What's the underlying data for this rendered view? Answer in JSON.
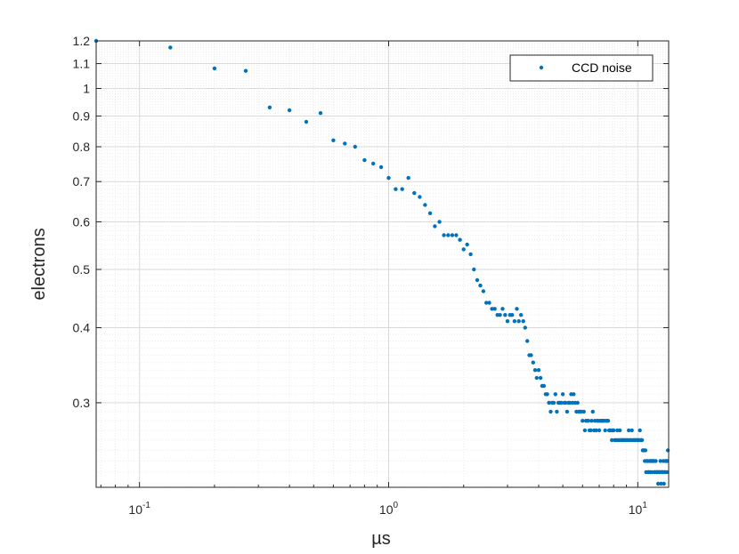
{
  "colors": {
    "series": "#0072BD",
    "axis": "#262626",
    "grid_major": "#d9d9d9",
    "grid_minor": "#ececec",
    "background": "#ffffff"
  },
  "chart_data": {
    "type": "scatter",
    "title": "",
    "xlabel": "µs",
    "ylabel": "electrons",
    "xscale": "log",
    "yscale": "log",
    "xlim": [
      0.067,
      13.3
    ],
    "ylim": [
      0.217,
      1.2
    ],
    "grid": true,
    "legend": {
      "position": "top-right",
      "entries": [
        "CCD noise"
      ]
    },
    "x_ticks": [
      {
        "value": 0.1,
        "base": "10",
        "exp": "-1"
      },
      {
        "value": 1,
        "base": "10",
        "exp": "0"
      },
      {
        "value": 10,
        "base": "10",
        "exp": "1"
      }
    ],
    "y_ticks": [
      {
        "value": 1.2,
        "label": "1.2"
      },
      {
        "value": 1.1,
        "label": "1.1"
      },
      {
        "value": 1.0,
        "label": "1"
      },
      {
        "value": 0.9,
        "label": "0.9"
      },
      {
        "value": 0.8,
        "label": "0.8"
      },
      {
        "value": 0.7,
        "label": "0.7"
      },
      {
        "value": 0.6,
        "label": "0.6"
      },
      {
        "value": 0.5,
        "label": "0.5"
      },
      {
        "value": 0.4,
        "label": "0.4"
      },
      {
        "value": 0.3,
        "label": "0.3"
      }
    ],
    "series": [
      {
        "name": "CCD noise",
        "points": [
          [
            0.067,
            1.2
          ],
          [
            0.133,
            1.17
          ],
          [
            0.2,
            1.08
          ],
          [
            0.267,
            1.07
          ],
          [
            0.333,
            0.93
          ],
          [
            0.4,
            0.92
          ],
          [
            0.467,
            0.88
          ],
          [
            0.533,
            0.91
          ],
          [
            0.6,
            0.82
          ],
          [
            0.667,
            0.81
          ],
          [
            0.733,
            0.8
          ],
          [
            0.8,
            0.76
          ],
          [
            0.867,
            0.75
          ],
          [
            0.933,
            0.74
          ],
          [
            1.0,
            0.71
          ],
          [
            1.067,
            0.68
          ],
          [
            1.133,
            0.68
          ],
          [
            1.2,
            0.71
          ],
          [
            1.267,
            0.67
          ],
          [
            1.333,
            0.66
          ],
          [
            1.4,
            0.64
          ],
          [
            1.467,
            0.62
          ],
          [
            1.533,
            0.59
          ],
          [
            1.6,
            0.6
          ],
          [
            1.667,
            0.57
          ],
          [
            1.733,
            0.57
          ],
          [
            1.8,
            0.57
          ],
          [
            1.867,
            0.57
          ],
          [
            1.933,
            0.56
          ],
          [
            2.0,
            0.54
          ],
          [
            2.067,
            0.55
          ],
          [
            2.133,
            0.53
          ],
          [
            2.2,
            0.5
          ],
          [
            2.267,
            0.48
          ],
          [
            2.333,
            0.47
          ],
          [
            2.4,
            0.46
          ],
          [
            2.467,
            0.44
          ],
          [
            2.533,
            0.44
          ],
          [
            2.6,
            0.43
          ],
          [
            2.667,
            0.43
          ],
          [
            2.733,
            0.42
          ],
          [
            2.8,
            0.42
          ],
          [
            2.867,
            0.43
          ],
          [
            2.933,
            0.42
          ],
          [
            3.0,
            0.41
          ],
          [
            3.07,
            0.42
          ],
          [
            3.13,
            0.42
          ],
          [
            3.2,
            0.41
          ],
          [
            3.27,
            0.43
          ],
          [
            3.33,
            0.41
          ],
          [
            3.4,
            0.42
          ],
          [
            3.47,
            0.41
          ],
          [
            3.53,
            0.4
          ],
          [
            3.6,
            0.38
          ],
          [
            3.67,
            0.36
          ],
          [
            3.73,
            0.36
          ],
          [
            3.8,
            0.35
          ],
          [
            3.87,
            0.34
          ],
          [
            3.93,
            0.33
          ],
          [
            4.0,
            0.34
          ],
          [
            4.07,
            0.33
          ],
          [
            4.13,
            0.32
          ],
          [
            4.2,
            0.32
          ],
          [
            4.27,
            0.31
          ],
          [
            4.33,
            0.31
          ],
          [
            4.4,
            0.3
          ],
          [
            4.47,
            0.29
          ],
          [
            4.53,
            0.3
          ],
          [
            4.6,
            0.3
          ],
          [
            4.67,
            0.31
          ],
          [
            4.73,
            0.29
          ],
          [
            4.8,
            0.3
          ],
          [
            4.87,
            0.3
          ],
          [
            4.93,
            0.3
          ],
          [
            5.0,
            0.31
          ],
          [
            5.07,
            0.3
          ],
          [
            5.13,
            0.3
          ],
          [
            5.2,
            0.29
          ],
          [
            5.27,
            0.3
          ],
          [
            5.33,
            0.3
          ],
          [
            5.4,
            0.31
          ],
          [
            5.47,
            0.3
          ],
          [
            5.53,
            0.31
          ],
          [
            5.6,
            0.3
          ],
          [
            5.67,
            0.29
          ],
          [
            5.73,
            0.3
          ],
          [
            5.8,
            0.29
          ],
          [
            5.87,
            0.29
          ],
          [
            5.93,
            0.29
          ],
          [
            6.0,
            0.28
          ],
          [
            6.07,
            0.29
          ],
          [
            6.13,
            0.27
          ],
          [
            6.2,
            0.28
          ],
          [
            6.27,
            0.28
          ],
          [
            6.33,
            0.28
          ],
          [
            6.4,
            0.27
          ],
          [
            6.47,
            0.27
          ],
          [
            6.53,
            0.28
          ],
          [
            6.6,
            0.29
          ],
          [
            6.67,
            0.27
          ],
          [
            6.73,
            0.28
          ],
          [
            6.8,
            0.27
          ],
          [
            6.87,
            0.28
          ],
          [
            6.93,
            0.28
          ],
          [
            7.0,
            0.27
          ],
          [
            7.07,
            0.28
          ],
          [
            7.13,
            0.28
          ],
          [
            7.2,
            0.28
          ],
          [
            7.27,
            0.28
          ],
          [
            7.33,
            0.28
          ],
          [
            7.4,
            0.27
          ],
          [
            7.47,
            0.28
          ],
          [
            7.53,
            0.28
          ],
          [
            7.6,
            0.28
          ],
          [
            7.67,
            0.27
          ],
          [
            7.73,
            0.27
          ],
          [
            7.8,
            0.27
          ],
          [
            7.87,
            0.26
          ],
          [
            7.93,
            0.27
          ],
          [
            8.0,
            0.27
          ],
          [
            8.07,
            0.26
          ],
          [
            8.13,
            0.26
          ],
          [
            8.2,
            0.26
          ],
          [
            8.27,
            0.27
          ],
          [
            8.33,
            0.26
          ],
          [
            8.4,
            0.26
          ],
          [
            8.47,
            0.27
          ],
          [
            8.53,
            0.26
          ],
          [
            8.6,
            0.26
          ],
          [
            8.67,
            0.26
          ],
          [
            8.73,
            0.26
          ],
          [
            8.8,
            0.26
          ],
          [
            8.87,
            0.26
          ],
          [
            8.93,
            0.26
          ],
          [
            9.0,
            0.26
          ],
          [
            9.07,
            0.26
          ],
          [
            9.13,
            0.26
          ],
          [
            9.2,
            0.27
          ],
          [
            9.27,
            0.26
          ],
          [
            9.33,
            0.26
          ],
          [
            9.4,
            0.26
          ],
          [
            9.47,
            0.27
          ],
          [
            9.53,
            0.26
          ],
          [
            9.6,
            0.26
          ],
          [
            9.67,
            0.26
          ],
          [
            9.73,
            0.26
          ],
          [
            9.8,
            0.26
          ],
          [
            9.87,
            0.26
          ],
          [
            9.93,
            0.26
          ],
          [
            10.0,
            0.26
          ],
          [
            10.07,
            0.26
          ],
          [
            10.13,
            0.26
          ],
          [
            10.2,
            0.27
          ],
          [
            10.27,
            0.26
          ],
          [
            10.33,
            0.26
          ],
          [
            10.4,
            0.26
          ],
          [
            10.47,
            0.25
          ],
          [
            10.53,
            0.25
          ],
          [
            10.6,
            0.25
          ],
          [
            10.67,
            0.24
          ],
          [
            10.73,
            0.25
          ],
          [
            10.8,
            0.23
          ],
          [
            10.87,
            0.24
          ],
          [
            10.93,
            0.24
          ],
          [
            11.0,
            0.23
          ],
          [
            11.07,
            0.23
          ],
          [
            11.13,
            0.24
          ],
          [
            11.2,
            0.23
          ],
          [
            11.27,
            0.24
          ],
          [
            11.33,
            0.24
          ],
          [
            11.4,
            0.23
          ],
          [
            11.47,
            0.24
          ],
          [
            11.53,
            0.24
          ],
          [
            11.6,
            0.24
          ],
          [
            11.67,
            0.23
          ],
          [
            11.73,
            0.23
          ],
          [
            11.8,
            0.24
          ],
          [
            11.87,
            0.23
          ],
          [
            11.93,
            0.23
          ],
          [
            12.0,
            0.23
          ],
          [
            12.07,
            0.22
          ],
          [
            12.13,
            0.23
          ],
          [
            12.2,
            0.23
          ],
          [
            12.27,
            0.23
          ],
          [
            12.33,
            0.24
          ],
          [
            12.4,
            0.22
          ],
          [
            12.47,
            0.23
          ],
          [
            12.53,
            0.23
          ],
          [
            12.6,
            0.23
          ],
          [
            12.67,
            0.24
          ],
          [
            12.73,
            0.22
          ],
          [
            12.8,
            0.23
          ],
          [
            12.87,
            0.23
          ],
          [
            12.93,
            0.24
          ],
          [
            13.0,
            0.24
          ],
          [
            13.07,
            0.23
          ],
          [
            13.13,
            0.24
          ],
          [
            13.2,
            0.25
          ]
        ]
      }
    ]
  }
}
